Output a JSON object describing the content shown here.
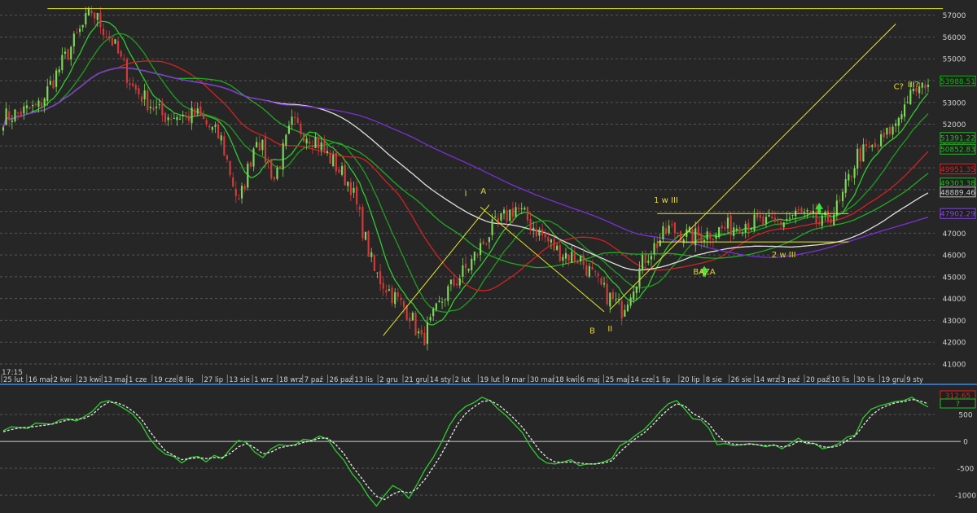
{
  "chart_data": [
    {
      "type": "candlestick",
      "title": "",
      "time_label": "17:15",
      "ylim": [
        40700,
        57400
      ],
      "y_ticks": [
        41000,
        42000,
        43000,
        44000,
        45000,
        46000,
        47000,
        48000,
        49000,
        50000,
        51000,
        52000,
        53000,
        54000,
        55000,
        56000,
        57000
      ],
      "x_ticks": [
        "25 lut",
        "16 mar",
        "2 kwi",
        "23 kwi",
        "13 maj",
        "1 cze",
        "19 cze",
        "8 lip",
        "27 lip",
        "13 sie",
        "1 wrz",
        "18 wrz",
        "7 paź",
        "26 paź",
        "13 lis",
        "2 gru",
        "21 gru",
        "14 sty",
        "2 lut",
        "19 lut",
        "9 mar",
        "30 mar",
        "18 kwi",
        "6 maj",
        "25 maj",
        "14 cze",
        "1 lip",
        "20 lip",
        "8 sie",
        "26 sie",
        "14 wrz",
        "3 paź",
        "20 paź",
        "10 lis",
        "30 lis",
        "19 gru",
        "9 sty"
      ],
      "price_anchors": [
        {
          "i": 0,
          "v": 52300
        },
        {
          "i": 12,
          "v": 52800
        },
        {
          "i": 22,
          "v": 55300
        },
        {
          "i": 30,
          "v": 57200
        },
        {
          "i": 37,
          "v": 55800
        },
        {
          "i": 44,
          "v": 53700
        },
        {
          "i": 54,
          "v": 52400
        },
        {
          "i": 66,
          "v": 52400
        },
        {
          "i": 74,
          "v": 51300
        },
        {
          "i": 80,
          "v": 48300
        },
        {
          "i": 86,
          "v": 51500
        },
        {
          "i": 92,
          "v": 49500
        },
        {
          "i": 98,
          "v": 52000
        },
        {
          "i": 106,
          "v": 51300
        },
        {
          "i": 118,
          "v": 49200
        },
        {
          "i": 126,
          "v": 45200
        },
        {
          "i": 132,
          "v": 44200
        },
        {
          "i": 138,
          "v": 43300
        },
        {
          "i": 142,
          "v": 42000
        },
        {
          "i": 150,
          "v": 44200
        },
        {
          "i": 158,
          "v": 45500
        },
        {
          "i": 166,
          "v": 47200
        },
        {
          "i": 174,
          "v": 48200
        },
        {
          "i": 180,
          "v": 47300
        },
        {
          "i": 188,
          "v": 46200
        },
        {
          "i": 196,
          "v": 45800
        },
        {
          "i": 204,
          "v": 44300
        },
        {
          "i": 210,
          "v": 43500
        },
        {
          "i": 218,
          "v": 45900
        },
        {
          "i": 226,
          "v": 47200
        },
        {
          "i": 234,
          "v": 46800
        },
        {
          "i": 242,
          "v": 47100
        },
        {
          "i": 252,
          "v": 47500
        },
        {
          "i": 262,
          "v": 47400
        },
        {
          "i": 270,
          "v": 47900
        },
        {
          "i": 278,
          "v": 47400
        },
        {
          "i": 284,
          "v": 48300
        },
        {
          "i": 290,
          "v": 50600
        },
        {
          "i": 296,
          "v": 50900
        },
        {
          "i": 302,
          "v": 51800
        },
        {
          "i": 308,
          "v": 53400
        },
        {
          "i": 314,
          "v": 53900
        }
      ],
      "bar_count": 315,
      "moving_averages": [
        {
          "period": 10,
          "color": "#2ecc2e",
          "last": 51391.22
        },
        {
          "period": 20,
          "color": "#1f9e1f",
          "last": 50852.83
        },
        {
          "period": 40,
          "color": "#d62020",
          "last": 49951.35
        },
        {
          "period": 60,
          "color": "#22aa22",
          "last": 49303.38
        },
        {
          "period": 90,
          "color": "#e0e0e0",
          "last": 48889.46
        },
        {
          "period": 140,
          "color": "#7b2fd8",
          "last": 47902.29
        }
      ],
      "last_price": 53988.51,
      "price_labels": [
        {
          "text": "53988.51",
          "color": "#00c000",
          "y": 53988.51
        },
        {
          "text": "51391.22",
          "color": "#22c022",
          "y": 51391.22
        },
        {
          "text": "50852.83",
          "color": "#22c022",
          "y": 50852.83
        },
        {
          "text": "49951.35",
          "color": "#e02020",
          "y": 49951.35
        },
        {
          "text": "49303.38",
          "color": "#22c022",
          "y": 49303.38
        },
        {
          "text": "48889.46",
          "color": "#c8c8c8",
          "y": 48889.46
        },
        {
          "text": "47902.29",
          "color": "#8844ee",
          "y": 47902.29
        }
      ],
      "annotations": [
        {
          "text": "I",
          "i": 157,
          "v": 48700
        },
        {
          "text": "A",
          "i": 163,
          "v": 48800
        },
        {
          "text": "B",
          "i": 200,
          "v": 42400
        },
        {
          "text": "II",
          "i": 206,
          "v": 42500
        },
        {
          "text": "1 w III",
          "i": 225,
          "v": 48400
        },
        {
          "text": "2 w III",
          "i": 265,
          "v": 45900
        },
        {
          "text": "BAZA",
          "i": 238,
          "v": 45100
        },
        {
          "text": "C?",
          "i": 304,
          "v": 53600
        },
        {
          "text": "III?",
          "i": 309,
          "v": 53700
        }
      ],
      "trendlines": [
        {
          "from": {
            "i": 15,
            "v": 57300
          },
          "to": {
            "i": 319,
            "v": 57300
          }
        },
        {
          "from": {
            "i": 129,
            "v": 42300
          },
          "to": {
            "i": 165,
            "v": 48300
          }
        },
        {
          "from": {
            "i": 162,
            "v": 48200
          },
          "to": {
            "i": 204,
            "v": 43400
          }
        },
        {
          "from": {
            "i": 206,
            "v": 43500
          },
          "to": {
            "i": 303,
            "v": 56600
          }
        },
        {
          "from": {
            "i": 222,
            "v": 47900
          },
          "to": {
            "i": 287,
            "v": 47900
          }
        },
        {
          "from": {
            "i": 222,
            "v": 46600
          },
          "to": {
            "i": 287,
            "v": 46600
          }
        }
      ],
      "signal_arrows": [
        {
          "i": 238,
          "v": 45500
        },
        {
          "i": 277,
          "v": 48400
        }
      ]
    },
    {
      "type": "line",
      "title": "",
      "ylim": [
        -1300,
        1000
      ],
      "y_ticks": [
        500,
        0,
        -500,
        -1000
      ],
      "zero_line": 0,
      "last_labels": [
        {
          "text": "312.65",
          "color": "#e02020"
        },
        {
          "text": "?",
          "color": "#22c022"
        }
      ],
      "series": [
        {
          "color": "#2ecc2e",
          "style": "solid",
          "values": [
            200,
            270,
            260,
            240,
            340,
            330,
            320,
            400,
            420,
            380,
            460,
            560,
            720,
            760,
            690,
            600,
            500,
            320,
            60,
            -120,
            -240,
            -280,
            -400,
            -300,
            -280,
            -380,
            -260,
            -320,
            -140,
            20,
            -20,
            -200,
            -300,
            -140,
            -60,
            -80,
            -60,
            40,
            20,
            100,
            40,
            -180,
            -350,
            -600,
            -780,
            -1020,
            -1200,
            -1000,
            -820,
            -900,
            -1060,
            -800,
            -520,
            -300,
            -20,
            300,
            520,
            650,
            720,
            820,
            760,
            600,
            480,
            320,
            160,
            -100,
            -300,
            -400,
            -420,
            -380,
            -340,
            -450,
            -420,
            -420,
            -380,
            -320,
            -80,
            0,
            120,
            220,
            380,
            560,
            700,
            760,
            600,
            420,
            400,
            240,
            -60,
            -40,
            -80,
            -60,
            -40,
            -60,
            -100,
            -60,
            -140,
            -40,
            60,
            -40,
            -40,
            -140,
            -100,
            -40,
            80,
            120,
            440,
            600,
            660,
            700,
            740,
            760,
            820,
            720,
            640
          ]
        },
        {
          "color": "#e8e8e8",
          "style": "dashed",
          "values": [
            180,
            220,
            250,
            260,
            280,
            300,
            320,
            360,
            400,
            410,
            430,
            500,
            640,
            730,
            720,
            660,
            560,
            420,
            200,
            0,
            -180,
            -260,
            -340,
            -320,
            -300,
            -320,
            -300,
            -300,
            -220,
            -100,
            -40,
            -120,
            -230,
            -200,
            -120,
            -90,
            -70,
            -20,
            10,
            60,
            60,
            -60,
            -230,
            -460,
            -650,
            -850,
            -1020,
            -1080,
            -980,
            -920,
            -960,
            -880,
            -700,
            -480,
            -240,
            40,
            320,
            520,
            640,
            740,
            760,
            680,
            560,
            420,
            260,
            60,
            -150,
            -300,
            -380,
            -390,
            -380,
            -400,
            -420,
            -420,
            -400,
            -360,
            -200,
            -60,
            60,
            160,
            300,
            460,
            600,
            700,
            660,
            520,
            440,
            320,
            120,
            -10,
            -50,
            -60,
            -50,
            -60,
            -80,
            -70,
            -100,
            -80,
            0,
            -20,
            -40,
            -100,
            -110,
            -80,
            20,
            100,
            300,
            480,
            600,
            670,
            720,
            740,
            780,
            750,
            700
          ]
        }
      ]
    }
  ]
}
